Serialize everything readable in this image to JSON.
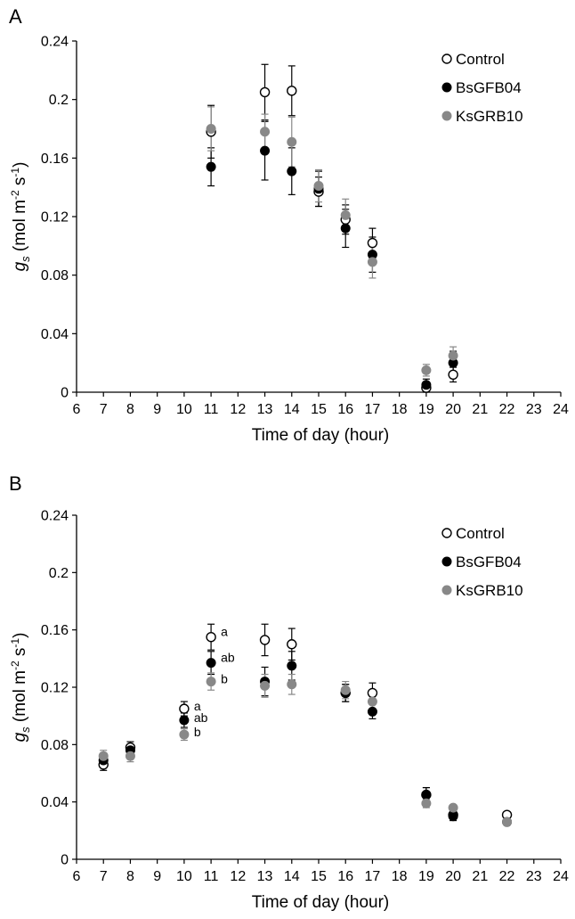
{
  "chart_data": [
    {
      "type": "scatter",
      "panel_label": "A",
      "xlabel": "Time of day (hour)",
      "ylabel": {
        "g": "g",
        "s": "s",
        "unit_pre": " (mol m",
        "m_exp": "-2",
        "unit_mid": " s",
        "s_exp": "-1",
        "unit_post": ")"
      },
      "xlim": [
        6,
        24
      ],
      "ylim": [
        0,
        0.24
      ],
      "xticks": [
        "6",
        "7",
        "8",
        "9",
        "10",
        "11",
        "12",
        "13",
        "14",
        "15",
        "16",
        "17",
        "18",
        "19",
        "20",
        "21",
        "22",
        "23",
        "24"
      ],
      "yticks": [
        "0",
        "0.04",
        "0.08",
        "0.12",
        "0.16",
        "0.2",
        "0.24"
      ],
      "legend_position": "top-right",
      "series": [
        {
          "name": "Control",
          "style": "open",
          "color": "#000000",
          "x": [
            11,
            13,
            14,
            15,
            16,
            17,
            19,
            20
          ],
          "y": [
            0.178,
            0.205,
            0.206,
            0.137,
            0.118,
            0.102,
            0.003,
            0.012
          ],
          "err": [
            0.018,
            0.019,
            0.017,
            0.01,
            0.01,
            0.01,
            0.003,
            0.005
          ]
        },
        {
          "name": "BsGFB04",
          "style": "filled",
          "color": "#000000",
          "x": [
            11,
            13,
            14,
            15,
            16,
            17,
            19,
            20
          ],
          "y": [
            0.154,
            0.165,
            0.151,
            0.139,
            0.112,
            0.094,
            0.005,
            0.02
          ],
          "err": [
            0.013,
            0.02,
            0.016,
            0.012,
            0.013,
            0.012,
            0.004,
            0.008
          ]
        },
        {
          "name": "KsGRB10",
          "style": "filled",
          "color": "#888888",
          "x": [
            11,
            13,
            14,
            15,
            16,
            17,
            19,
            20
          ],
          "y": [
            0.18,
            0.178,
            0.171,
            0.141,
            0.121,
            0.089,
            0.015,
            0.025
          ],
          "err": [
            0.015,
            0.012,
            0.017,
            0.011,
            0.011,
            0.011,
            0.004,
            0.006
          ]
        }
      ],
      "annotations": []
    },
    {
      "type": "scatter",
      "panel_label": "B",
      "xlabel": "Time of day (hour)",
      "ylabel": {
        "g": "g",
        "s": "s",
        "unit_pre": " (mol m",
        "m_exp": "-2",
        "unit_mid": " s",
        "s_exp": "-1",
        "unit_post": ")"
      },
      "xlim": [
        6,
        24
      ],
      "ylim": [
        0,
        0.24
      ],
      "xticks": [
        "6",
        "7",
        "8",
        "9",
        "10",
        "11",
        "12",
        "13",
        "14",
        "15",
        "16",
        "17",
        "18",
        "19",
        "20",
        "21",
        "22",
        "23",
        "24"
      ],
      "yticks": [
        "0",
        "0.04",
        "0.08",
        "0.12",
        "0.16",
        "0.2",
        "0.24"
      ],
      "legend_position": "top-right",
      "series": [
        {
          "name": "Control",
          "style": "open",
          "color": "#000000",
          "x": [
            7,
            8,
            10,
            11,
            13,
            14,
            16,
            17,
            19,
            20,
            22
          ],
          "y": [
            0.066,
            0.078,
            0.105,
            0.155,
            0.153,
            0.15,
            0.116,
            0.116,
            0.045,
            0.031,
            0.031
          ],
          "err": [
            0.004,
            0.004,
            0.005,
            0.009,
            0.011,
            0.011,
            0.006,
            0.007,
            0.005,
            0.003,
            0.002
          ]
        },
        {
          "name": "BsGFB04",
          "style": "filled",
          "color": "#000000",
          "x": [
            7,
            8,
            10,
            11,
            13,
            14,
            16,
            17,
            19,
            20,
            22
          ],
          "y": [
            0.069,
            0.076,
            0.097,
            0.137,
            0.124,
            0.135,
            0.116,
            0.103,
            0.045,
            0.03,
            0.026
          ],
          "err": [
            0.005,
            0.004,
            0.005,
            0.008,
            0.01,
            0.01,
            0.006,
            0.005,
            0.005,
            0.003,
            0.002
          ]
        },
        {
          "name": "KsGRB10",
          "style": "filled",
          "color": "#888888",
          "x": [
            7,
            8,
            10,
            11,
            13,
            14,
            16,
            17,
            19,
            20,
            22
          ],
          "y": [
            0.072,
            0.072,
            0.087,
            0.124,
            0.121,
            0.122,
            0.118,
            0.11,
            0.039,
            0.036,
            0.026
          ],
          "err": [
            0.004,
            0.004,
            0.004,
            0.006,
            0.008,
            0.007,
            0.006,
            0.005,
            0.003,
            0.002,
            0.002
          ]
        }
      ],
      "annotations": [
        {
          "text": "a",
          "x": 10,
          "y": 0.105
        },
        {
          "text": "ab",
          "x": 10,
          "y": 0.097
        },
        {
          "text": "b",
          "x": 10,
          "y": 0.087
        },
        {
          "text": "a",
          "x": 11,
          "y": 0.157
        },
        {
          "text": "ab",
          "x": 11,
          "y": 0.139
        },
        {
          "text": "b",
          "x": 11,
          "y": 0.124
        }
      ]
    }
  ]
}
